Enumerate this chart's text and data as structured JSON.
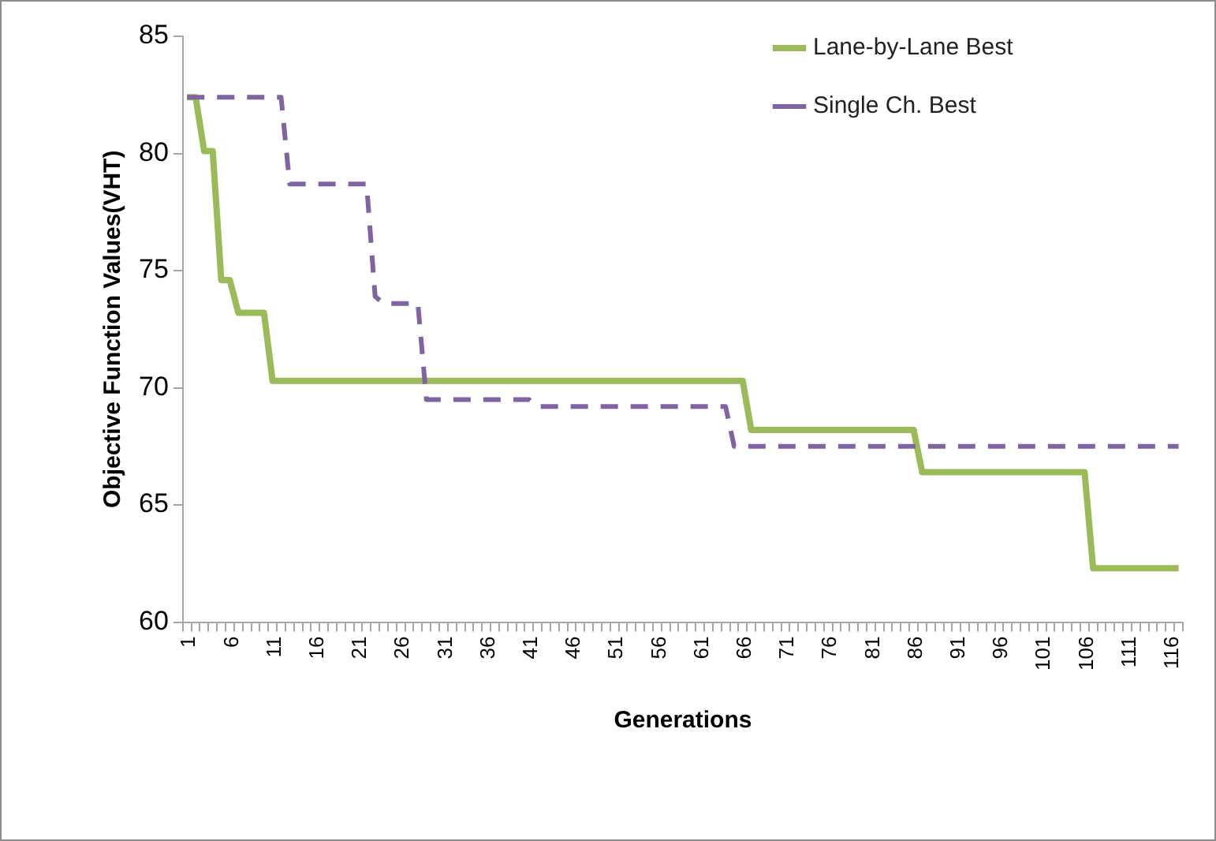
{
  "chart_data": {
    "type": "line",
    "xlabel": "Generations",
    "ylabel": "Objective Function Values(VHT)",
    "categories": [
      "1",
      null,
      null,
      null,
      null,
      "6",
      null,
      null,
      null,
      null,
      "11",
      null,
      null,
      null,
      null,
      "16",
      null,
      null,
      null,
      null,
      "21",
      null,
      null,
      null,
      null,
      "26",
      null,
      null,
      null,
      null,
      "31",
      null,
      null,
      null,
      null,
      "36",
      null,
      null,
      null,
      null,
      "41",
      null,
      null,
      null,
      null,
      "46",
      null,
      null,
      null,
      null,
      "51",
      null,
      null,
      null,
      null,
      "56",
      null,
      null,
      null,
      null,
      "61",
      null,
      null,
      null,
      null,
      "66",
      null,
      null,
      null,
      null,
      "71",
      null,
      null,
      null,
      null,
      "76",
      null,
      null,
      null,
      null,
      "81",
      null,
      null,
      null,
      null,
      "86",
      null,
      null,
      null,
      null,
      "91",
      null,
      null,
      null,
      null,
      "96",
      null,
      null,
      null,
      null,
      "101",
      null,
      null,
      null,
      null,
      "106",
      null,
      null,
      null,
      null,
      "111",
      null,
      null,
      null,
      null,
      "116",
      null
    ],
    "series": [
      {
        "name": "Lane-by-Lane Best",
        "color": "#9bbb59",
        "line_style": "solid",
        "values": [
          82.4,
          82.4,
          80.1,
          80.1,
          74.6,
          74.6,
          73.2,
          73.2,
          73.2,
          73.2,
          70.3,
          70.3,
          70.3,
          70.3,
          70.3,
          70.3,
          70.3,
          70.3,
          70.3,
          70.3,
          70.3,
          70.3,
          70.3,
          70.3,
          70.3,
          70.3,
          70.3,
          70.3,
          70.3,
          70.3,
          70.3,
          70.3,
          70.3,
          70.3,
          70.3,
          70.3,
          70.3,
          70.3,
          70.3,
          70.3,
          70.3,
          70.3,
          70.3,
          70.3,
          70.3,
          70.3,
          70.3,
          70.3,
          70.3,
          70.3,
          70.3,
          70.3,
          70.3,
          70.3,
          70.3,
          70.3,
          70.3,
          70.3,
          70.3,
          70.3,
          70.3,
          70.3,
          70.3,
          70.3,
          70.3,
          70.3,
          68.2,
          68.2,
          68.2,
          68.2,
          68.2,
          68.2,
          68.2,
          68.2,
          68.2,
          68.2,
          68.2,
          68.2,
          68.2,
          68.2,
          68.2,
          68.2,
          68.2,
          68.2,
          68.2,
          68.2,
          66.4,
          66.4,
          66.4,
          66.4,
          66.4,
          66.4,
          66.4,
          66.4,
          66.4,
          66.4,
          66.4,
          66.4,
          66.4,
          66.4,
          66.4,
          66.4,
          66.4,
          66.4,
          66.4,
          66.4,
          62.3,
          62.3,
          62.3,
          62.3,
          62.3,
          62.3,
          62.3,
          62.3,
          62.3,
          62.3,
          62.3
        ]
      },
      {
        "name": "Single Ch. Best",
        "color": "#8064a2",
        "line_style": "dashed",
        "values": [
          82.4,
          82.4,
          82.4,
          82.4,
          82.4,
          82.4,
          82.4,
          82.4,
          82.4,
          82.4,
          82.4,
          82.4,
          78.7,
          78.7,
          78.7,
          78.7,
          78.7,
          78.7,
          78.7,
          78.7,
          78.7,
          78.7,
          73.9,
          73.6,
          73.6,
          73.6,
          73.6,
          73.6,
          69.5,
          69.5,
          69.5,
          69.5,
          69.5,
          69.5,
          69.5,
          69.5,
          69.5,
          69.5,
          69.5,
          69.5,
          69.5,
          69.2,
          69.2,
          69.2,
          69.2,
          69.2,
          69.2,
          69.2,
          69.2,
          69.2,
          69.2,
          69.2,
          69.2,
          69.2,
          69.2,
          69.2,
          69.2,
          69.2,
          69.2,
          69.2,
          69.2,
          69.2,
          69.2,
          69.2,
          67.5,
          67.5,
          67.5,
          67.5,
          67.5,
          67.5,
          67.5,
          67.5,
          67.5,
          67.5,
          67.5,
          67.5,
          67.5,
          67.5,
          67.5,
          67.5,
          67.5,
          67.5,
          67.5,
          67.5,
          67.5,
          67.5,
          67.5,
          67.5,
          67.5,
          67.5,
          67.5,
          67.5,
          67.5,
          67.5,
          67.5,
          67.5,
          67.5,
          67.5,
          67.5,
          67.5,
          67.5,
          67.5,
          67.5,
          67.5,
          67.5,
          67.5,
          67.5,
          67.5,
          67.5,
          67.5,
          67.5,
          67.5,
          67.5,
          67.5,
          67.5,
          67.5,
          67.5
        ]
      }
    ],
    "ylim": [
      60,
      85
    ],
    "yticks": [
      60,
      65,
      70,
      75,
      80,
      85
    ],
    "legend": "top right",
    "marker": "none",
    "grid": false
  }
}
